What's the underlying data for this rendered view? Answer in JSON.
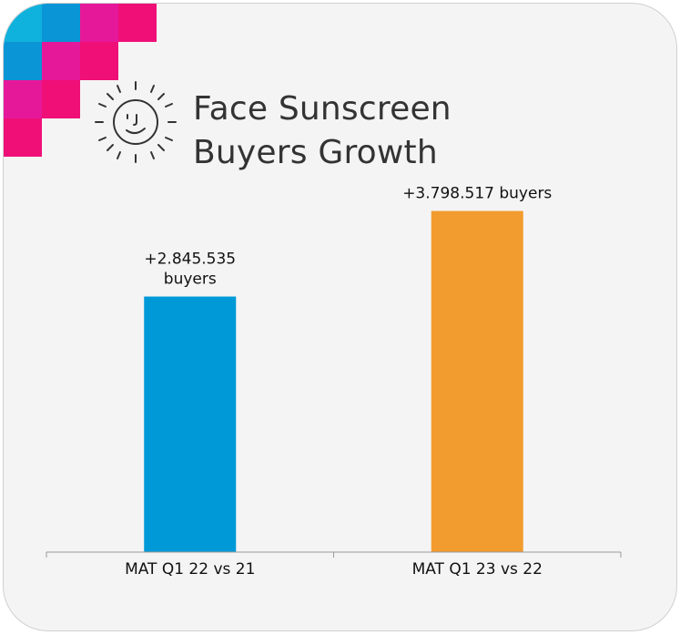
{
  "title": {
    "line1": "Face Sunscreen",
    "line2": "Buyers Growth"
  },
  "icon": "smiling-sun-icon",
  "colors": {
    "background": "#f4f4f4",
    "blue_bar": "#0099d8",
    "orange_bar": "#f29b2e",
    "mosaic_cyan": "#0fb2dd",
    "mosaic_blue": "#0a95d6",
    "mosaic_pink": "#e6189a",
    "mosaic_magenta": "#ef0f77"
  },
  "chart_data": {
    "type": "bar",
    "categories": [
      "MAT Q1 22 vs 21",
      "MAT Q1 23 vs 22"
    ],
    "values": [
      2845535,
      3798517
    ],
    "data_labels": [
      [
        "+2.845.535",
        "buyers"
      ],
      [
        "+3.798.517 buyers"
      ]
    ],
    "bar_colors": [
      "#0099d8",
      "#f29b2e"
    ],
    "title": "Face Sunscreen Buyers Growth",
    "xlabel": "",
    "ylabel": "",
    "ylim": [
      0,
      4200000
    ],
    "grid": false,
    "legend": "none"
  }
}
